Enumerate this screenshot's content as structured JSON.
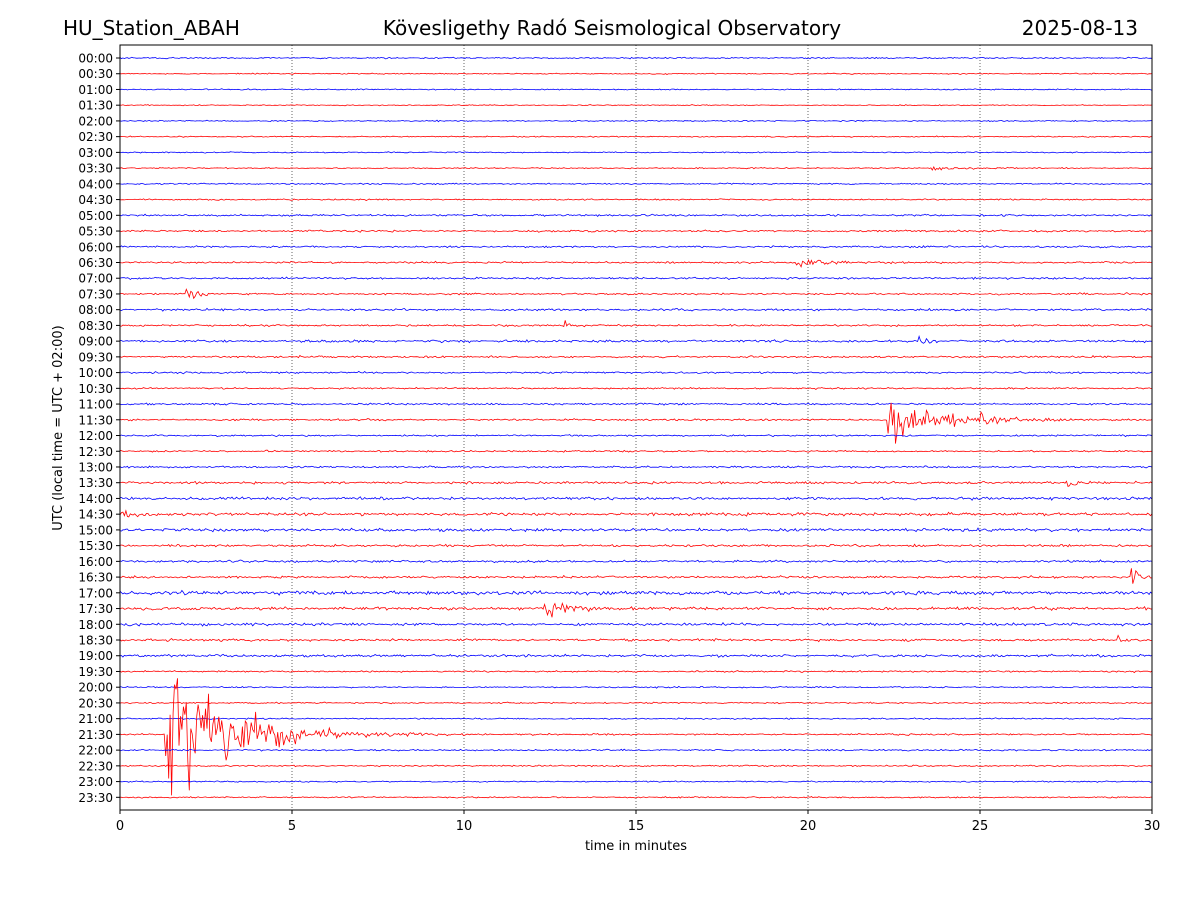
{
  "header": {
    "station": "HU_Station_ABAH",
    "observatory": "Kövesligethy Radó Seismological Observatory",
    "date": "2025-08-13"
  },
  "chart_data": {
    "type": "line",
    "title": "Kövesligethy Radó Seismological Observatory",
    "xlabel": "time in minutes",
    "ylabel": "UTC (local time = UTC + 02:00)",
    "xlim": [
      0,
      30
    ],
    "x_ticks": [
      0,
      5,
      10,
      15,
      20,
      25,
      30
    ],
    "grid": "vertical dotted lines at x ticks",
    "colors": {
      "blue": "#0000ff",
      "red": "#ff0000"
    },
    "row_labels": [
      "00:00",
      "00:30",
      "01:00",
      "01:30",
      "02:00",
      "02:30",
      "03:00",
      "03:30",
      "04:00",
      "04:30",
      "05:00",
      "05:30",
      "06:00",
      "06:30",
      "07:00",
      "07:30",
      "08:00",
      "08:30",
      "09:00",
      "09:30",
      "10:00",
      "10:30",
      "11:00",
      "11:30",
      "12:00",
      "12:30",
      "13:00",
      "13:30",
      "14:00",
      "14:30",
      "15:00",
      "15:30",
      "16:00",
      "16:30",
      "17:00",
      "17:30",
      "18:00",
      "18:30",
      "19:00",
      "19:30",
      "20:00",
      "20:30",
      "21:00",
      "21:30",
      "22:00",
      "22:30",
      "23:00",
      "23:30"
    ],
    "row_color_pattern": [
      "blue",
      "red"
    ],
    "row_noise": [
      0.6,
      0.5,
      0.5,
      0.4,
      0.5,
      0.5,
      0.5,
      0.5,
      0.6,
      0.6,
      0.8,
      0.8,
      0.8,
      0.8,
      0.8,
      0.8,
      0.9,
      0.8,
      1.0,
      0.8,
      0.8,
      0.7,
      0.8,
      0.8,
      0.7,
      0.7,
      0.8,
      1.0,
      1.2,
      1.3,
      1.3,
      1.0,
      1.0,
      1.0,
      1.6,
      1.3,
      1.2,
      1.0,
      1.1,
      0.7,
      0.6,
      0.6,
      0.6,
      0.7,
      0.7,
      0.6,
      0.6,
      0.6
    ],
    "events": [
      {
        "row": "03:30",
        "start_min": 23.5,
        "amp": 2.5,
        "dur_min": 1.5
      },
      {
        "row": "06:30",
        "start_min": 19.6,
        "amp": 6,
        "dur_min": 1.5
      },
      {
        "row": "07:30",
        "start_min": 1.9,
        "amp": 8,
        "dur_min": 0.7
      },
      {
        "row": "08:30",
        "start_min": 12.9,
        "amp": 5,
        "dur_min": 0.3
      },
      {
        "row": "09:00",
        "start_min": 23.2,
        "amp": 9,
        "dur_min": 0.3
      },
      {
        "row": "11:30",
        "start_min": 22.3,
        "amp": 22,
        "dur_min": 3.0
      },
      {
        "row": "11:30",
        "start_min": 25.0,
        "amp": 8,
        "dur_min": 0.5
      },
      {
        "row": "13:30",
        "start_min": 27.5,
        "amp": 5,
        "dur_min": 0.4
      },
      {
        "row": "14:30",
        "start_min": 0.0,
        "amp": 7,
        "dur_min": 0.4
      },
      {
        "row": "16:30",
        "start_min": 29.4,
        "amp": 9,
        "dur_min": 0.6
      },
      {
        "row": "17:30",
        "start_min": 12.2,
        "amp": 14,
        "dur_min": 1.0
      },
      {
        "row": "18:30",
        "start_min": 29.0,
        "amp": 5,
        "dur_min": 0.2
      },
      {
        "row": "21:30",
        "start_min": 1.3,
        "amp": 95,
        "dur_min": 3.5
      }
    ]
  }
}
